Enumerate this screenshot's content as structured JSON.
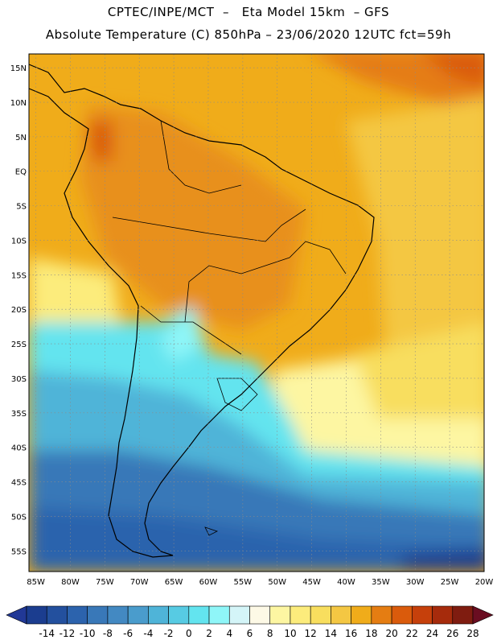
{
  "header": {
    "line1": "CPTEC/INPE/MCT  –   Eta Model 15km  – GFS",
    "line2": "Absolute Temperature (C) 850hPa – 23/06/2020 12UTC fct=59h"
  },
  "map": {
    "lat_labels": [
      "15N",
      "10N",
      "5N",
      "EQ",
      "5S",
      "10S",
      "15S",
      "20S",
      "25S",
      "30S",
      "35S",
      "40S",
      "45S",
      "50S",
      "55S"
    ],
    "lon_labels": [
      "85W",
      "80W",
      "75W",
      "70W",
      "65W",
      "60W",
      "55W",
      "50W",
      "45W",
      "40W",
      "35W",
      "30W",
      "25W",
      "20W"
    ],
    "lat_range": [
      -58,
      17
    ],
    "lon_range": [
      -86,
      -20
    ]
  },
  "legend": {
    "labels": [
      "-14",
      "-12",
      "-10",
      "-8",
      "-6",
      "-4",
      "-2",
      "0",
      "2",
      "4",
      "6",
      "8",
      "10",
      "12",
      "14",
      "16",
      "18",
      "20",
      "22",
      "24",
      "26",
      "28"
    ],
    "colors": [
      "#1b3d8f",
      "#23509e",
      "#2c63ad",
      "#3978b8",
      "#4389c2",
      "#4a9ccc",
      "#4fb4d8",
      "#57cbe3",
      "#63e4ef",
      "#8ff6f8",
      "#d4f5f8",
      "#fdf9e6",
      "#fdf6a2",
      "#fcec7c",
      "#f8de5e",
      "#f4c743",
      "#f0ac1a",
      "#e57d12",
      "#da5b0c",
      "#c6400b",
      "#a62b0c",
      "#7f1c10"
    ],
    "under_color": "#213896",
    "over_color": "#6a0d21"
  }
}
